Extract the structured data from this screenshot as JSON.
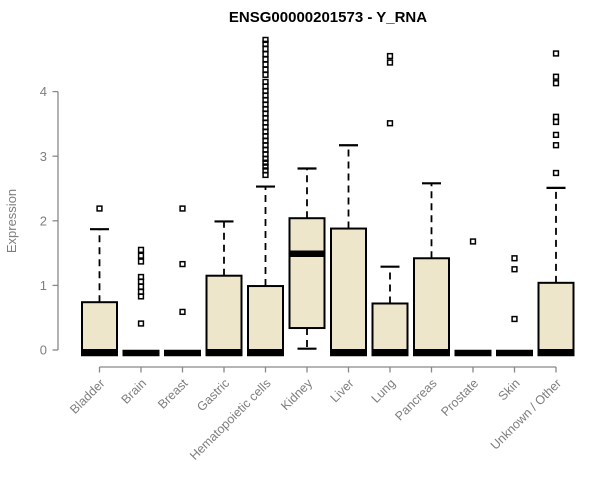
{
  "colors": {
    "box_fill": "#EDE6CB",
    "box_border": "#000000",
    "whisker": "#000000",
    "median": "#000000",
    "outlier": "#000000",
    "axis": "#898989",
    "tick_label": "#7E7E7E",
    "title": "#000000",
    "background": "#FFFFFF"
  },
  "chart_data": {
    "type": "boxplot",
    "title": "ENSG00000201573 - Y_RNA",
    "ylabel": "Expression",
    "xlabel": "",
    "yticks": [
      0,
      1,
      2,
      3,
      4
    ],
    "ylim": [
      -0.1,
      4.85
    ],
    "grid": false,
    "legend": "none",
    "categories": [
      "Bladder",
      "Brain",
      "Breast",
      "Gastric",
      "Hematopoietic cells",
      "Kidney",
      "Liver",
      "Lung",
      "Pancreas",
      "Prostate",
      "Skin",
      "Unknown / Other"
    ],
    "series": [
      {
        "name": "Bladder",
        "q1": 0,
        "median": 0,
        "q3": 0.74,
        "whisker_low": 0,
        "whisker_high": 1.87,
        "outliers": [
          2.19
        ]
      },
      {
        "name": "Brain",
        "q1": 0,
        "median": 0,
        "q3": 0,
        "whisker_low": 0,
        "whisker_high": 0,
        "outliers": [
          1.55,
          1.46,
          1.37,
          1.13,
          1.06,
          0.98,
          0.9,
          0.83,
          0.41
        ]
      },
      {
        "name": "Breast",
        "q1": 0,
        "median": 0,
        "q3": 0,
        "whisker_low": 0,
        "whisker_high": 0,
        "outliers": [
          2.19,
          1.33,
          0.59
        ]
      },
      {
        "name": "Gastric",
        "q1": 0,
        "median": 0,
        "q3": 1.15,
        "whisker_low": 0,
        "whisker_high": 1.99,
        "outliers": []
      },
      {
        "name": "Hematopoietic cells",
        "q1": 0,
        "median": 0,
        "q3": 0.99,
        "whisker_low": 0,
        "whisker_high": 2.53,
        "outliers": [
          4.8,
          4.74,
          4.66,
          4.58,
          4.5,
          4.42,
          4.34,
          4.26,
          4.15,
          4.08,
          4.01,
          3.94,
          3.87,
          3.8,
          3.73,
          3.66,
          3.59,
          3.52,
          3.45,
          3.38,
          3.31,
          3.24,
          3.17,
          3.1,
          3.03,
          2.96,
          2.9,
          2.84,
          2.78,
          2.71
        ]
      },
      {
        "name": "Kidney",
        "q1": 0.34,
        "median": 1.49,
        "q3": 2.04,
        "whisker_low": 0.02,
        "whisker_high": 2.81,
        "outliers": []
      },
      {
        "name": "Liver",
        "q1": 0,
        "median": 0,
        "q3": 1.88,
        "whisker_low": 0,
        "whisker_high": 3.17,
        "outliers": []
      },
      {
        "name": "Lung",
        "q1": 0,
        "median": 0,
        "q3": 0.72,
        "whisker_low": 0,
        "whisker_high": 1.29,
        "outliers": [
          4.55,
          4.45,
          3.51
        ]
      },
      {
        "name": "Pancreas",
        "q1": 0,
        "median": 0,
        "q3": 1.42,
        "whisker_low": 0,
        "whisker_high": 2.58,
        "outliers": []
      },
      {
        "name": "Prostate",
        "q1": 0,
        "median": 0,
        "q3": 0,
        "whisker_low": 0,
        "whisker_high": 0,
        "outliers": [
          1.68
        ]
      },
      {
        "name": "Skin",
        "q1": 0,
        "median": 0,
        "q3": 0,
        "whisker_low": 0,
        "whisker_high": 0,
        "outliers": [
          1.42,
          1.25,
          0.48
        ]
      },
      {
        "name": "Unknown / Other",
        "q1": 0,
        "median": 0,
        "q3": 1.04,
        "whisker_low": 0,
        "whisker_high": 2.51,
        "outliers": [
          4.59,
          4.23,
          4.13,
          3.61,
          3.53,
          3.33,
          3.17,
          2.74
        ]
      }
    ]
  }
}
